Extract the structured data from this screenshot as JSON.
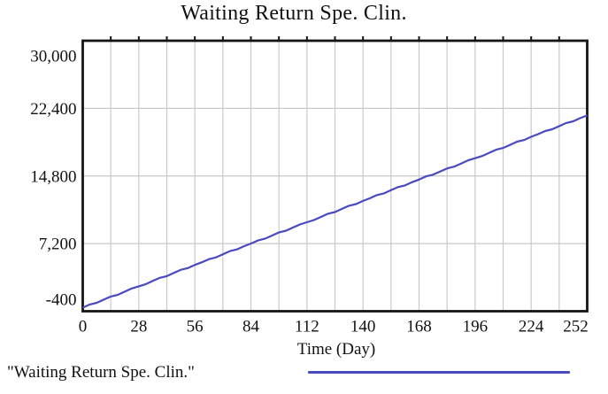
{
  "chart_data": {
    "type": "line",
    "title": "Waiting Return Spe. Clin.",
    "xlabel": "Time (Day)",
    "ylabel": "",
    "xlim": [
      0,
      252
    ],
    "ylim": [
      -400,
      30000
    ],
    "x_tick_values": [
      0,
      28,
      56,
      84,
      112,
      140,
      168,
      196,
      224,
      252
    ],
    "x_tick_labels": [
      "0",
      "28",
      "56",
      "84",
      "112",
      "140",
      "168",
      "196",
      "224",
      "252"
    ],
    "x_minor_grid_step": 14,
    "y_tick_values": [
      -400,
      7200,
      14800,
      22400,
      30000
    ],
    "y_tick_labels": [
      "-400",
      "7,200",
      "14,800",
      "22,400",
      "30,000"
    ],
    "grid": true,
    "legend_position": "bottom-left",
    "series": [
      {
        "name": "\"Waiting Return Spe. Clin.\"",
        "color": "#4a4ac0",
        "x": [
          0,
          28,
          56,
          84,
          112,
          140,
          168,
          196,
          224,
          252
        ],
        "y": [
          0,
          2400,
          4800,
          7200,
          9600,
          12000,
          14400,
          16800,
          19200,
          21600
        ]
      }
    ],
    "colors": {
      "grid": "#c9c9c9",
      "frame": "#151515",
      "text": "#111111",
      "background": "#ffffff"
    }
  },
  "legend": {
    "label": "\"Waiting Return Spe. Clin.\"",
    "line_color": "#4a4ac0"
  }
}
